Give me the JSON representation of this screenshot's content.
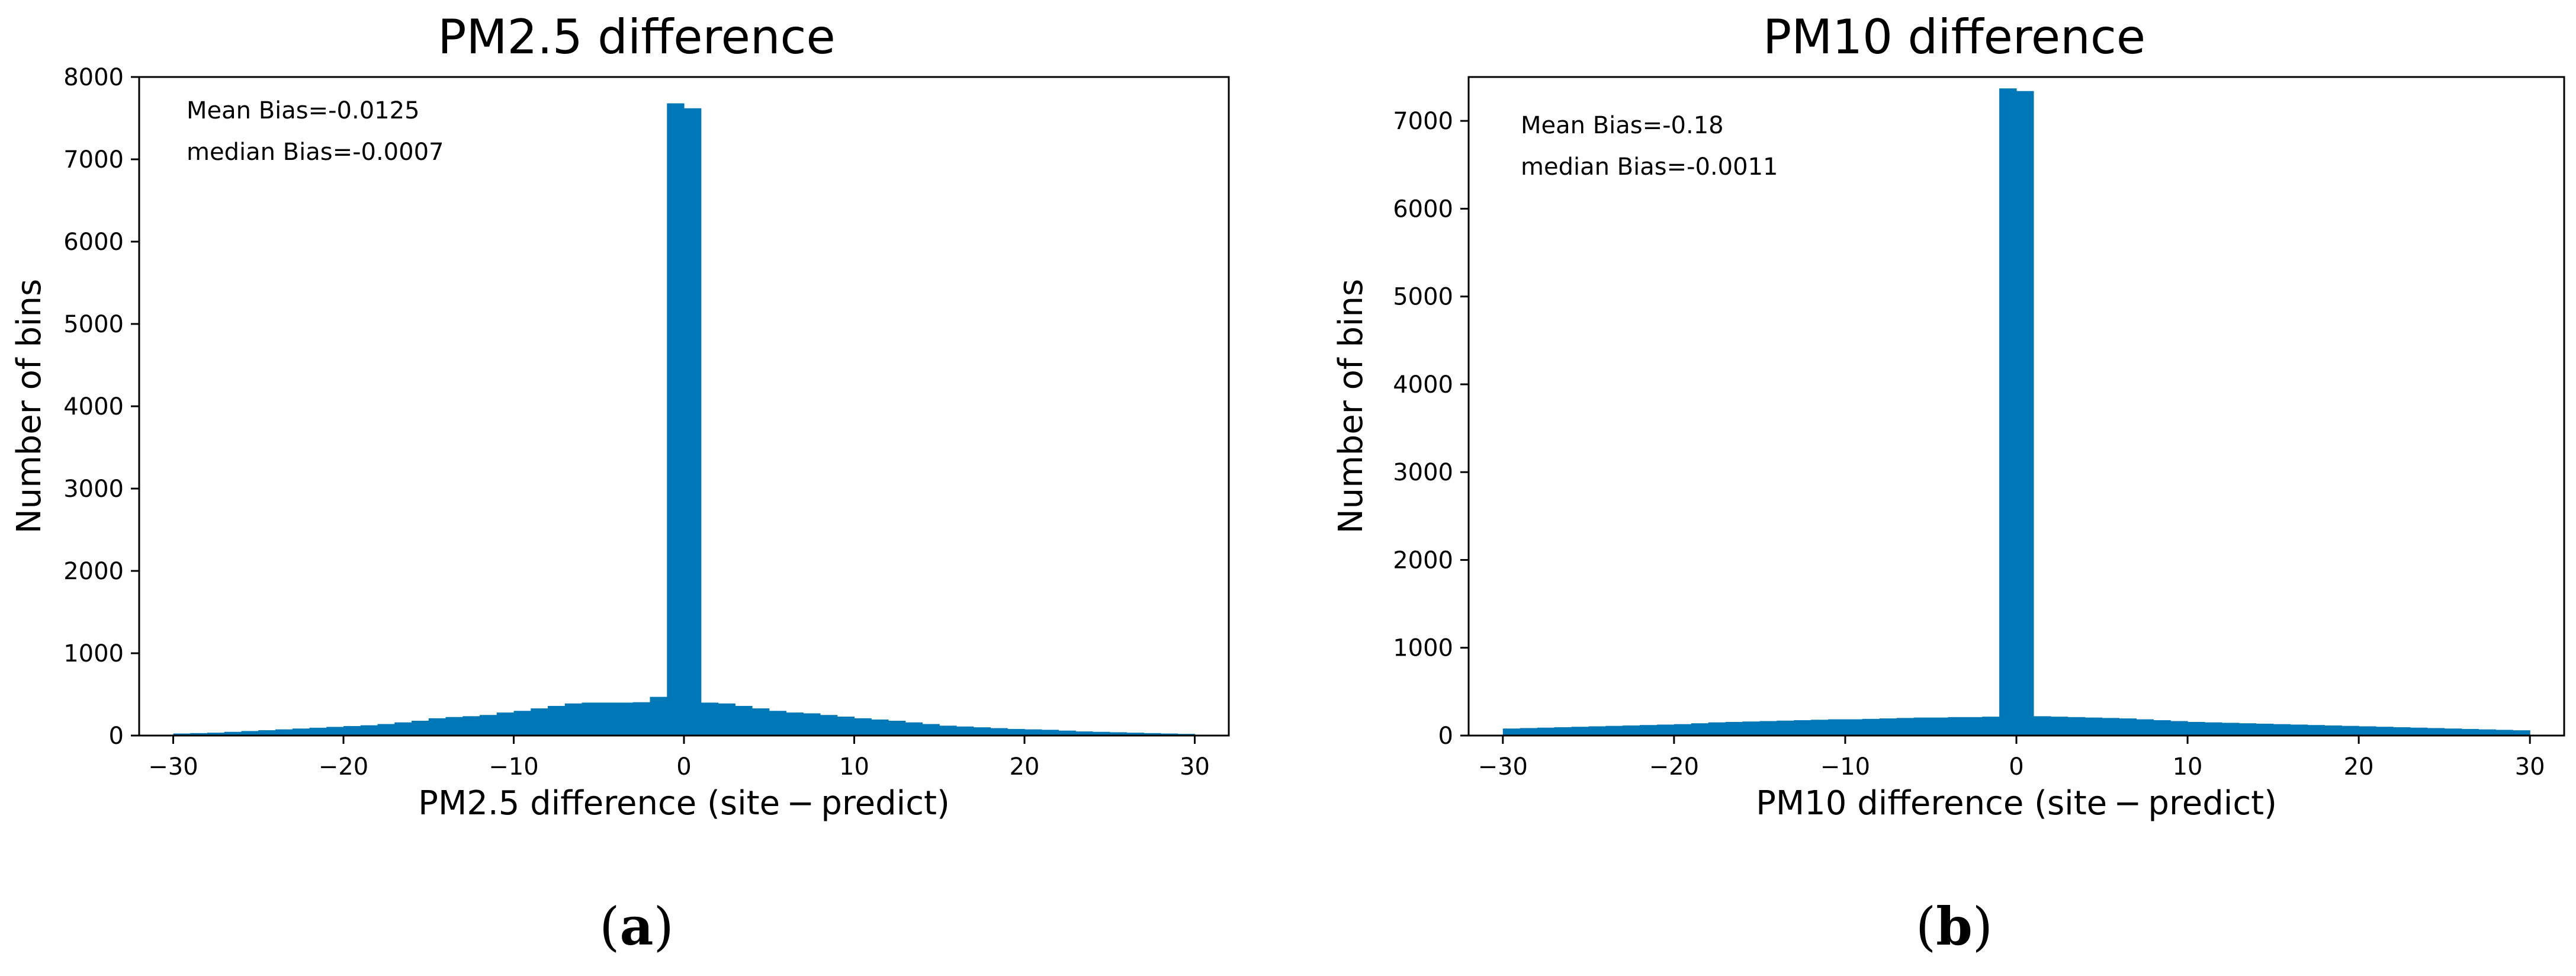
{
  "chart_data": [
    {
      "type": "bar",
      "title": "PM2.5 difference",
      "xlabel": "PM2.5 difference (site − predict)",
      "ylabel": "Number of bins",
      "xlim": [
        -32,
        32
      ],
      "ylim": [
        0,
        8000
      ],
      "xticks": [
        -30,
        -20,
        -10,
        0,
        10,
        20,
        30
      ],
      "xtick_labels": [
        "−30",
        "−20",
        "−10",
        "0",
        "10",
        "20",
        "30"
      ],
      "yticks": [
        0,
        1000,
        2000,
        3000,
        4000,
        5000,
        6000,
        7000,
        8000
      ],
      "ytick_labels": [
        "0",
        "1000",
        "2000",
        "3000",
        "4000",
        "5000",
        "6000",
        "7000",
        "8000"
      ],
      "grid": false,
      "color": "#0077b6",
      "annotations": [
        "Mean Bias=-0.0125",
        "median Bias=-0.0007"
      ],
      "panel_label": "a",
      "bin_width": 1,
      "bin_start": -30,
      "values": [
        25,
        30,
        35,
        45,
        55,
        65,
        75,
        85,
        95,
        105,
        115,
        125,
        140,
        160,
        180,
        210,
        225,
        235,
        250,
        280,
        300,
        330,
        360,
        390,
        400,
        400,
        400,
        405,
        470,
        7680,
        7620,
        400,
        390,
        360,
        330,
        300,
        280,
        270,
        250,
        230,
        210,
        195,
        180,
        160,
        140,
        120,
        110,
        100,
        90,
        80,
        75,
        70,
        60,
        50,
        45,
        40,
        35,
        30,
        25,
        20
      ]
    },
    {
      "type": "bar",
      "title": "PM10 difference",
      "xlabel": "PM10 difference (site − predict)",
      "ylabel": "Number of bins",
      "xlim": [
        -32,
        32
      ],
      "ylim": [
        0,
        7500
      ],
      "xticks": [
        -30,
        -20,
        -10,
        0,
        10,
        20,
        30
      ],
      "xtick_labels": [
        "−30",
        "−20",
        "−10",
        "0",
        "10",
        "20",
        "30"
      ],
      "yticks": [
        0,
        1000,
        2000,
        3000,
        4000,
        5000,
        6000,
        7000
      ],
      "ytick_labels": [
        "0",
        "1000",
        "2000",
        "3000",
        "4000",
        "5000",
        "6000",
        "7000"
      ],
      "grid": false,
      "color": "#0077b6",
      "annotations": [
        "Mean Bias=-0.18",
        "median Bias=-0.0011"
      ],
      "panel_label": "b",
      "bin_width": 1,
      "bin_start": -30,
      "values": [
        80,
        85,
        90,
        95,
        100,
        105,
        110,
        115,
        120,
        125,
        130,
        140,
        150,
        155,
        160,
        165,
        170,
        175,
        180,
        185,
        185,
        190,
        195,
        200,
        205,
        205,
        210,
        210,
        215,
        7370,
        7340,
        220,
        215,
        210,
        205,
        200,
        195,
        185,
        175,
        165,
        155,
        150,
        145,
        140,
        135,
        130,
        125,
        120,
        115,
        110,
        105,
        100,
        95,
        90,
        85,
        80,
        75,
        70,
        65,
        60
      ]
    }
  ]
}
